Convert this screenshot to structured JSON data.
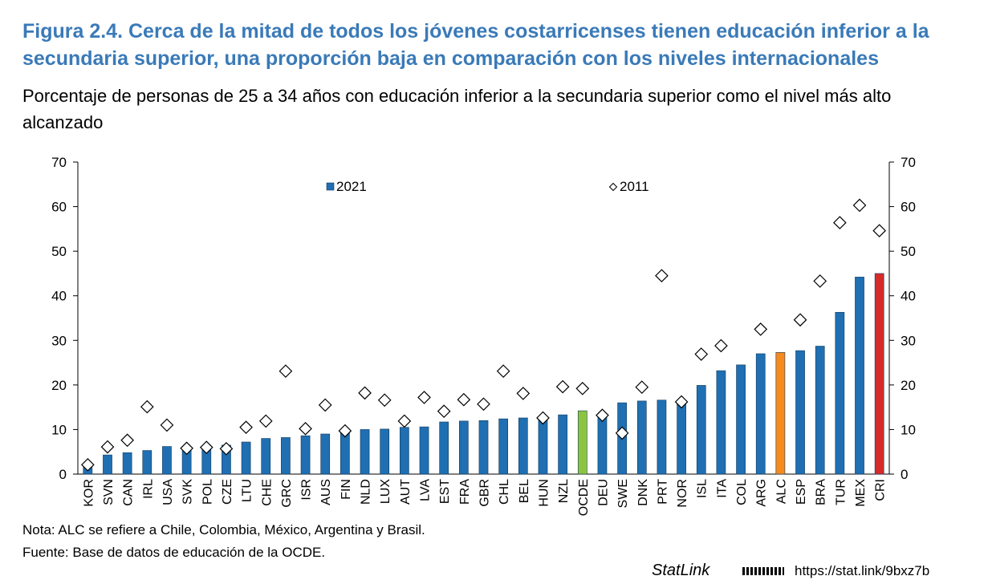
{
  "figure": {
    "title": "Figura 2.4. Cerca de la mitad de todos los jóvenes costarricenses tienen educación inferior a la secundaria superior, una proporción baja en comparación con los niveles internacionales",
    "subtitle": "Porcentaje de personas de 25 a 34 años con educación inferior a la secundaria superior como el nivel más alto alcanzado",
    "note": "Nota: ALC se refiere a Chile, Colombia, México, Argentina y Brasil.",
    "source": "Fuente: Base de datos de educación de la OCDE.",
    "statlink_label": "StatLink",
    "statlink_url": "https://stat.link/9bxz7b"
  },
  "chart_data": {
    "type": "bar",
    "categories": [
      "KOR",
      "SVN",
      "CAN",
      "IRL",
      "USA",
      "SVK",
      "POL",
      "CZE",
      "LTU",
      "CHE",
      "GRC",
      "ISR",
      "AUS",
      "FIN",
      "NLD",
      "LUX",
      "AUT",
      "LVA",
      "EST",
      "FRA",
      "GBR",
      "CHL",
      "BEL",
      "HUN",
      "NZL",
      "OCDE",
      "DEU",
      "SWE",
      "DNK",
      "PRT",
      "NOR",
      "ISL",
      "ITA",
      "COL",
      "ARG",
      "ALC",
      "ESP",
      "BRA",
      "TUR",
      "MEX",
      "CRI"
    ],
    "series": [
      {
        "name": "2021",
        "marker": "bar",
        "values": [
          1.5,
          4.3,
          4.8,
          5.3,
          6.2,
          5.6,
          6.0,
          6.5,
          7.2,
          8.0,
          8.2,
          8.6,
          9.0,
          9.7,
          10.0,
          10.1,
          10.5,
          10.6,
          11.7,
          11.9,
          12.0,
          12.4,
          12.6,
          12.8,
          13.3,
          14.2,
          12.9,
          16.0,
          16.4,
          16.6,
          15.8,
          19.9,
          23.2,
          24.5,
          27.0,
          27.3,
          27.7,
          28.7,
          36.3,
          44.2,
          45.0
        ]
      },
      {
        "name": "2011",
        "marker": "diamond",
        "values": [
          2.1,
          6.1,
          7.6,
          15.1,
          11.0,
          5.8,
          6.0,
          5.7,
          10.5,
          11.9,
          23.1,
          10.2,
          15.5,
          9.7,
          18.2,
          16.6,
          11.9,
          17.2,
          14.1,
          16.7,
          15.7,
          23.1,
          18.1,
          12.6,
          19.6,
          19.2,
          13.2,
          9.2,
          19.5,
          44.5,
          16.2,
          26.9,
          28.8,
          null,
          32.5,
          null,
          34.6,
          43.3,
          56.4,
          60.3,
          54.6
        ]
      }
    ],
    "highlight_colors": {
      "default": "#1f6fb2",
      "OCDE": "#8dc43f",
      "ALC": "#f68a1e",
      "CRI": "#d52b2b"
    },
    "ylim": [
      0,
      70
    ],
    "yticks": [
      0,
      10,
      20,
      30,
      40,
      50,
      60,
      70
    ],
    "xlabel": "",
    "ylabel": "",
    "grid": false,
    "legend_placement": "top"
  }
}
